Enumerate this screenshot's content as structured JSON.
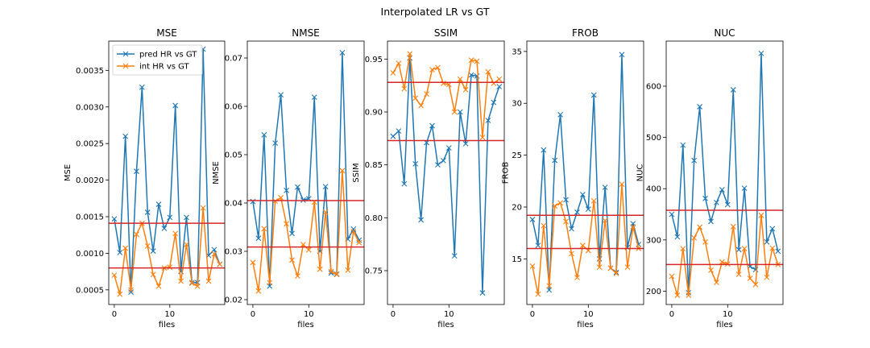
{
  "figure": {
    "suptitle": "Interpolated LR vs GT"
  },
  "colors": {
    "pred": "#1f77b4",
    "int": "#ff7f0e",
    "hline": "#d62728",
    "axis": "#000000"
  },
  "chart_data": [
    {
      "type": "line",
      "title": "MSE",
      "xlabel": "files",
      "ylabel": "MSE",
      "xlim": [
        -1.0,
        19.9
      ],
      "ylim": [
        0.0003,
        0.0039
      ],
      "xticks": [
        0,
        10
      ],
      "yticks": [
        0.0005,
        0.001,
        0.0015,
        0.002,
        0.0025,
        0.003,
        0.0035
      ],
      "ytick_labels": [
        "0.0005",
        "0.0010",
        "0.0015",
        "0.0020",
        "0.0025",
        "0.0030",
        "0.0035"
      ],
      "legend": {
        "position": "upper-left"
      },
      "series": [
        {
          "name": "pred HR vs GT",
          "values": [
            0.00147,
            0.00101,
            0.0026,
            0.00047,
            0.00212,
            0.00327,
            0.00156,
            0.00103,
            0.00167,
            0.00134,
            0.00149,
            0.00302,
            0.00075,
            0.00149,
            0.0006,
            0.0006,
            0.00379,
            0.00097,
            0.00105,
            0.00085
          ]
        },
        {
          "name": "int HR vs GT",
          "values": [
            0.0007,
            0.00044,
            0.00107,
            0.0005,
            0.00126,
            0.00141,
            0.0011,
            0.00071,
            0.00055,
            0.0008,
            0.00081,
            0.00127,
            0.00062,
            0.00112,
            0.00059,
            0.00055,
            0.00162,
            0.00062,
            0.00099,
            0.00085
          ]
        }
      ],
      "hlines": [
        0.00141,
        0.0008
      ]
    },
    {
      "type": "line",
      "title": "NMSE",
      "xlabel": "files",
      "ylabel": "NMSE",
      "xlim": [
        -1.0,
        19.9
      ],
      "ylim": [
        0.019,
        0.0735
      ],
      "xticks": [
        0,
        10
      ],
      "yticks": [
        0.02,
        0.03,
        0.04,
        0.05,
        0.06,
        0.07
      ],
      "ytick_labels": [
        "0.02",
        "0.03",
        "0.04",
        "0.05",
        "0.06",
        "0.07"
      ],
      "series": [
        {
          "name": "pred HR vs GT",
          "values": [
            0.0403,
            0.0327,
            0.0541,
            0.0228,
            0.0524,
            0.0624,
            0.0426,
            0.0337,
            0.0433,
            0.0406,
            0.0409,
            0.0619,
            0.03,
            0.0434,
            0.0255,
            0.0253,
            0.0711,
            0.0325,
            0.0346,
            0.0323
          ]
        },
        {
          "name": "int HR vs GT",
          "values": [
            0.0277,
            0.0218,
            0.0347,
            0.0235,
            0.0404,
            0.0411,
            0.0357,
            0.0282,
            0.0249,
            0.0314,
            0.0303,
            0.0402,
            0.0263,
            0.0381,
            0.0258,
            0.0252,
            0.0467,
            0.0261,
            0.0341,
            0.0318
          ]
        }
      ],
      "hlines": [
        0.0405,
        0.0309
      ]
    },
    {
      "type": "line",
      "title": "SSIM",
      "xlabel": "files",
      "ylabel": "SSIM",
      "xlim": [
        -1.0,
        19.9
      ],
      "ylim": [
        0.718,
        0.967
      ],
      "xticks": [
        0,
        10
      ],
      "yticks": [
        0.75,
        0.8,
        0.85,
        0.9,
        0.95
      ],
      "ytick_labels": [
        "0.75",
        "0.80",
        "0.85",
        "0.90",
        "0.95"
      ],
      "series": [
        {
          "name": "pred HR vs GT",
          "values": [
            0.877,
            0.882,
            0.832,
            0.951,
            0.851,
            0.798,
            0.871,
            0.887,
            0.85,
            0.854,
            0.866,
            0.764,
            0.9,
            0.87,
            0.935,
            0.934,
            0.729,
            0.892,
            0.909,
            0.924
          ]
        },
        {
          "name": "int HR vs GT",
          "values": [
            0.937,
            0.946,
            0.922,
            0.955,
            0.913,
            0.906,
            0.917,
            0.94,
            0.942,
            0.927,
            0.926,
            0.9,
            0.931,
            0.921,
            0.949,
            0.948,
            0.876,
            0.938,
            0.927,
            0.931
          ]
        }
      ],
      "hlines": [
        0.928,
        0.873
      ]
    },
    {
      "type": "line",
      "title": "FROB",
      "xlabel": "files",
      "ylabel": "FROB",
      "xlim": [
        -1.0,
        19.9
      ],
      "ylim": [
        10.6,
        36.0
      ],
      "xticks": [
        0,
        10
      ],
      "yticks": [
        15,
        20,
        25,
        30,
        35
      ],
      "ytick_labels": [
        "15",
        "20",
        "25",
        "30",
        "35"
      ],
      "series": [
        {
          "name": "pred HR vs GT",
          "values": [
            18.8,
            16.3,
            25.5,
            12.0,
            24.5,
            28.9,
            20.7,
            17.9,
            19.5,
            21.2,
            19.8,
            30.8,
            15.0,
            21.9,
            14.1,
            13.7,
            34.7,
            16.1,
            18.4,
            16.4
          ]
        },
        {
          "name": "int HR vs GT",
          "values": [
            14.3,
            11.6,
            18.2,
            12.4,
            20.1,
            20.4,
            18.6,
            15.5,
            13.2,
            16.3,
            15.8,
            20.6,
            14.2,
            18.7,
            14.1,
            13.6,
            22.2,
            14.2,
            18.1,
            16.0
          ]
        }
      ],
      "hlines": [
        19.2,
        16.0
      ]
    },
    {
      "type": "line",
      "title": "NUC",
      "xlabel": "files",
      "ylabel": "NUC",
      "xlim": [
        -1.0,
        19.9
      ],
      "ylim": [
        174,
        688
      ],
      "xticks": [
        0,
        10
      ],
      "yticks": [
        200,
        300,
        400,
        500,
        600
      ],
      "ytick_labels": [
        "200",
        "300",
        "400",
        "500",
        "600"
      ],
      "series": [
        {
          "name": "pred HR vs GT",
          "values": [
            350,
            306,
            485,
            197,
            455,
            560,
            381,
            336,
            373,
            398,
            369,
            593,
            281,
            401,
            248,
            242,
            664,
            296,
            322,
            278
          ]
        },
        {
          "name": "int HR vs GT",
          "values": [
            229,
            192,
            283,
            192,
            304,
            325,
            296,
            241,
            217,
            257,
            253,
            326,
            233,
            283,
            225,
            213,
            348,
            227,
            284,
            252
          ]
        }
      ],
      "hlines": [
        358,
        252
      ]
    }
  ]
}
